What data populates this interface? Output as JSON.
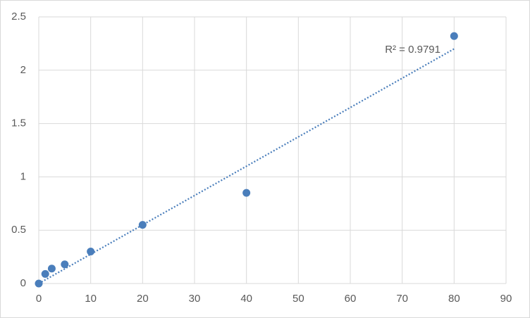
{
  "chart_data": {
    "type": "scatter",
    "x": [
      0,
      1.25,
      2.5,
      5,
      10,
      20,
      40,
      80
    ],
    "values": [
      0,
      0.09,
      0.14,
      0.18,
      0.3,
      0.55,
      0.85,
      2.32
    ],
    "color": "#4a7ebb",
    "trendline": {
      "x": [
        0,
        80
      ],
      "values": [
        0,
        2.2
      ],
      "color": "#4a7ebb",
      "style": "dotted"
    },
    "annotation": "R² = 0.9791",
    "xlim": [
      0,
      90
    ],
    "xticks": [
      0,
      10,
      20,
      30,
      40,
      50,
      60,
      70,
      80,
      90
    ],
    "ylim": [
      0,
      2.5
    ],
    "yticks": [
      0,
      0.5,
      1,
      1.5,
      2,
      2.5
    ],
    "grid": true
  }
}
